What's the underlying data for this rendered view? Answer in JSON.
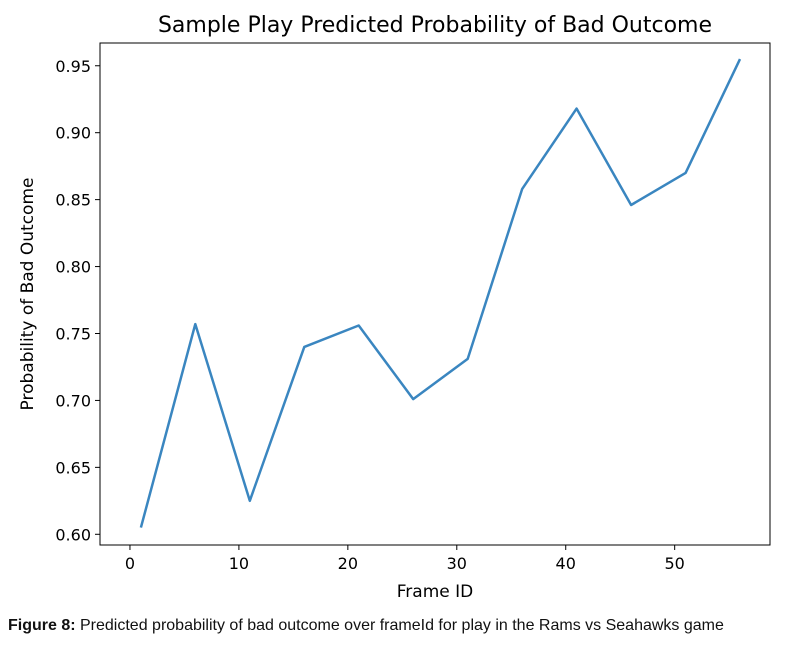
{
  "chart_data": {
    "type": "line",
    "title": "Sample Play Predicted Probability of Bad Outcome",
    "xlabel": "Frame ID",
    "ylabel": "Probability of Bad Outcome",
    "xlim": [
      -2.75,
      58.75
    ],
    "ylim": [
      0.592,
      0.967
    ],
    "xticks": [
      0,
      10,
      20,
      30,
      40,
      50
    ],
    "yticks": [
      0.6,
      0.65,
      0.7,
      0.75,
      0.8,
      0.85,
      0.9,
      0.95
    ],
    "grid": false,
    "series": [
      {
        "x": [
          1,
          6,
          11,
          16,
          21,
          26,
          31,
          36,
          41,
          46,
          51,
          56
        ],
        "y": [
          0.605,
          0.757,
          0.625,
          0.74,
          0.756,
          0.701,
          0.731,
          0.858,
          0.918,
          0.846,
          0.87,
          0.955
        ],
        "color": "#3a86c0"
      }
    ]
  },
  "caption": {
    "label": "Figure 8:",
    "text": " Predicted probability of bad outcome over frameId for play in the Rams vs Seahawks game"
  }
}
